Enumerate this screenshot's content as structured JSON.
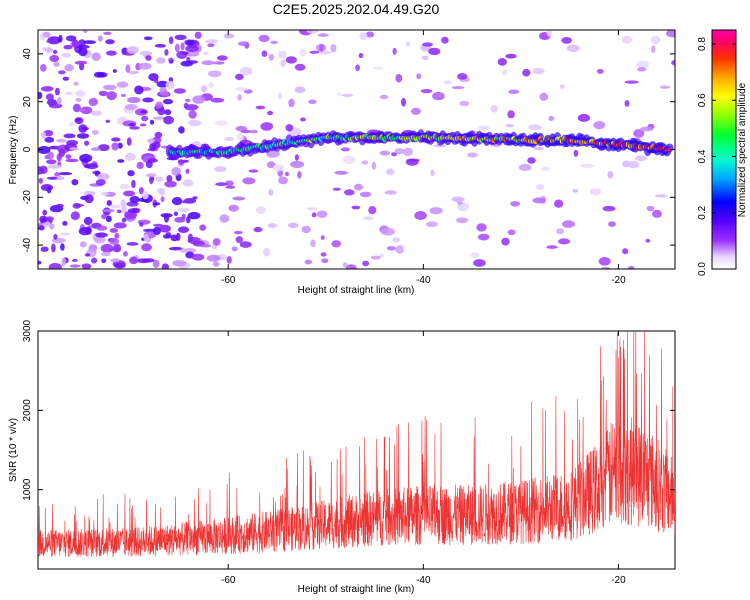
{
  "title": "C2E5.2025.202.04.49.G20",
  "chart_data": [
    {
      "type": "heatmap",
      "name": "spectrogram",
      "xlabel": "Height of straight line (km)",
      "ylabel": "Frequency (Hz)",
      "xlim": [
        -79.5,
        -14.2
      ],
      "ylim": [
        -50,
        50
      ],
      "xticks": [
        -60,
        -40,
        -20
      ],
      "yticks": [
        -40,
        -20,
        0,
        20,
        40
      ],
      "colorbar": {
        "label": "Normalized spectral amplitude",
        "range": [
          0,
          0.85
        ],
        "ticks": [
          0.0,
          0.2,
          0.4,
          0.6,
          0.8
        ]
      },
      "ridge": {
        "description_points_km_hz": [
          [
            -65,
            -1
          ],
          [
            -60,
            -1
          ],
          [
            -50,
            5
          ],
          [
            -40,
            5
          ],
          [
            -30,
            4
          ],
          [
            -25,
            4
          ],
          [
            -20,
            2
          ],
          [
            -15,
            0
          ]
        ]
      }
    },
    {
      "type": "line",
      "name": "snr",
      "xlabel": "Height of straight line (km)",
      "ylabel": "SNR (10 * v/v)",
      "xlim": [
        -79.5,
        -14.2
      ],
      "ylim": [
        0,
        3000
      ],
      "xticks": [
        -60,
        -40,
        -20
      ],
      "yticks": [
        1000,
        2000,
        3000
      ],
      "color": "#ee3333",
      "envelope_km_snr": [
        [
          -79.5,
          400
        ],
        [
          -70,
          420
        ],
        [
          -62,
          500
        ],
        [
          -55,
          600
        ],
        [
          -50,
          700
        ],
        [
          -45,
          800
        ],
        [
          -40,
          850
        ],
        [
          -35,
          850
        ],
        [
          -30,
          900
        ],
        [
          -25,
          1000
        ],
        [
          -22,
          1300
        ],
        [
          -20,
          1600
        ],
        [
          -17,
          1450
        ],
        [
          -15,
          1200
        ],
        [
          -14.2,
          1100
        ]
      ]
    }
  ]
}
